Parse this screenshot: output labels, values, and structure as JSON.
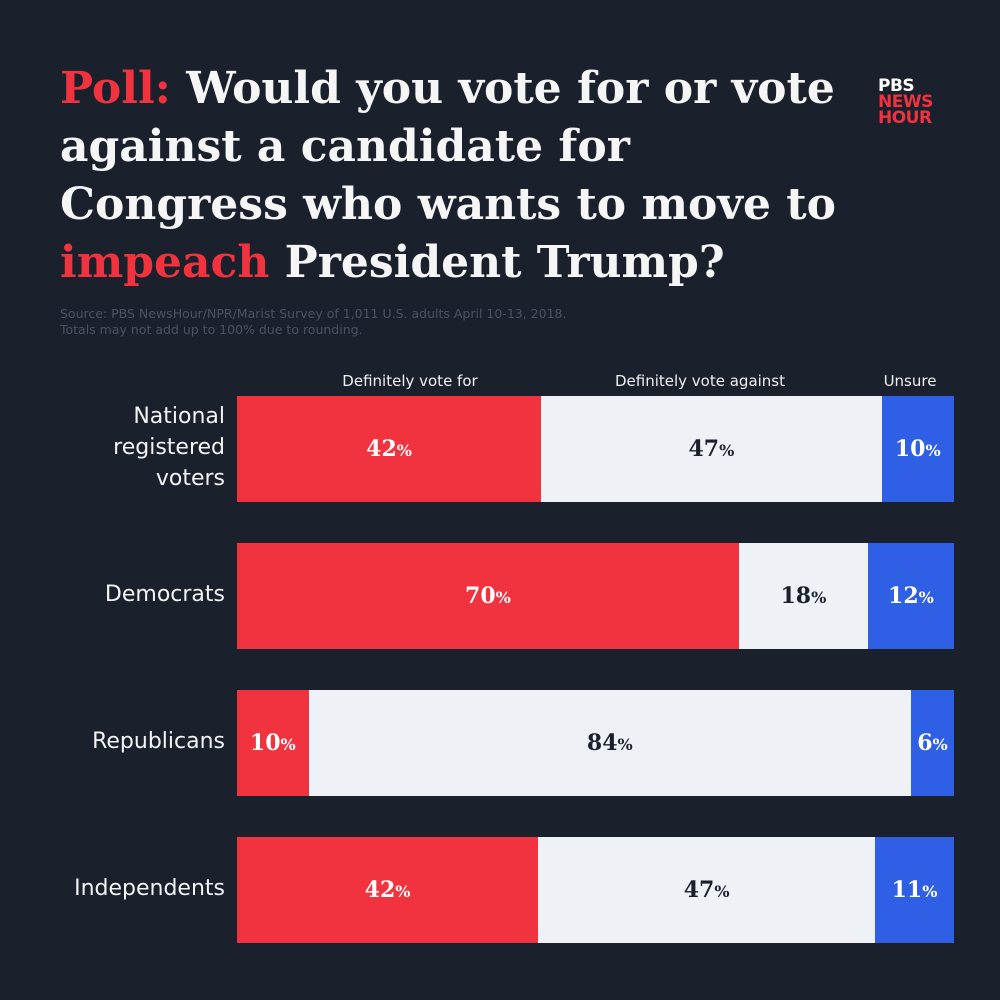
{
  "title": {
    "lead": "Poll:",
    "mid": " Would you vote for or vote against a candidate for Congress who wants to move to ",
    "highlight": "impeach",
    "end": " President Trump?"
  },
  "logo": {
    "line1": "PBS",
    "line2": "NEWS",
    "line3": "HOUR"
  },
  "source": {
    "line1": "Source: PBS NewsHour/NPR/Marist  Survey of 1,011 U.S. adults April 10-13, 2018.",
    "line2": "Totals may not add up to 100% due to rounding."
  },
  "colors": {
    "for": "#f0333e",
    "against": "#eef2f6",
    "unsure": "#2f5fe4",
    "background": "#1a202c"
  },
  "chart_data": {
    "type": "bar",
    "orientation": "horizontal",
    "stacked": true,
    "categories": [
      "National\nregistered\nvoters",
      "Democrats",
      "Republicans",
      "Independents"
    ],
    "series": [
      {
        "name": "Definitely vote for",
        "values": [
          42,
          70,
          10,
          42
        ]
      },
      {
        "name": "Definitely vote against",
        "values": [
          47,
          18,
          84,
          47
        ]
      },
      {
        "name": "Unsure",
        "values": [
          10,
          12,
          6,
          11
        ]
      }
    ],
    "unit": "%",
    "legend": "top"
  }
}
